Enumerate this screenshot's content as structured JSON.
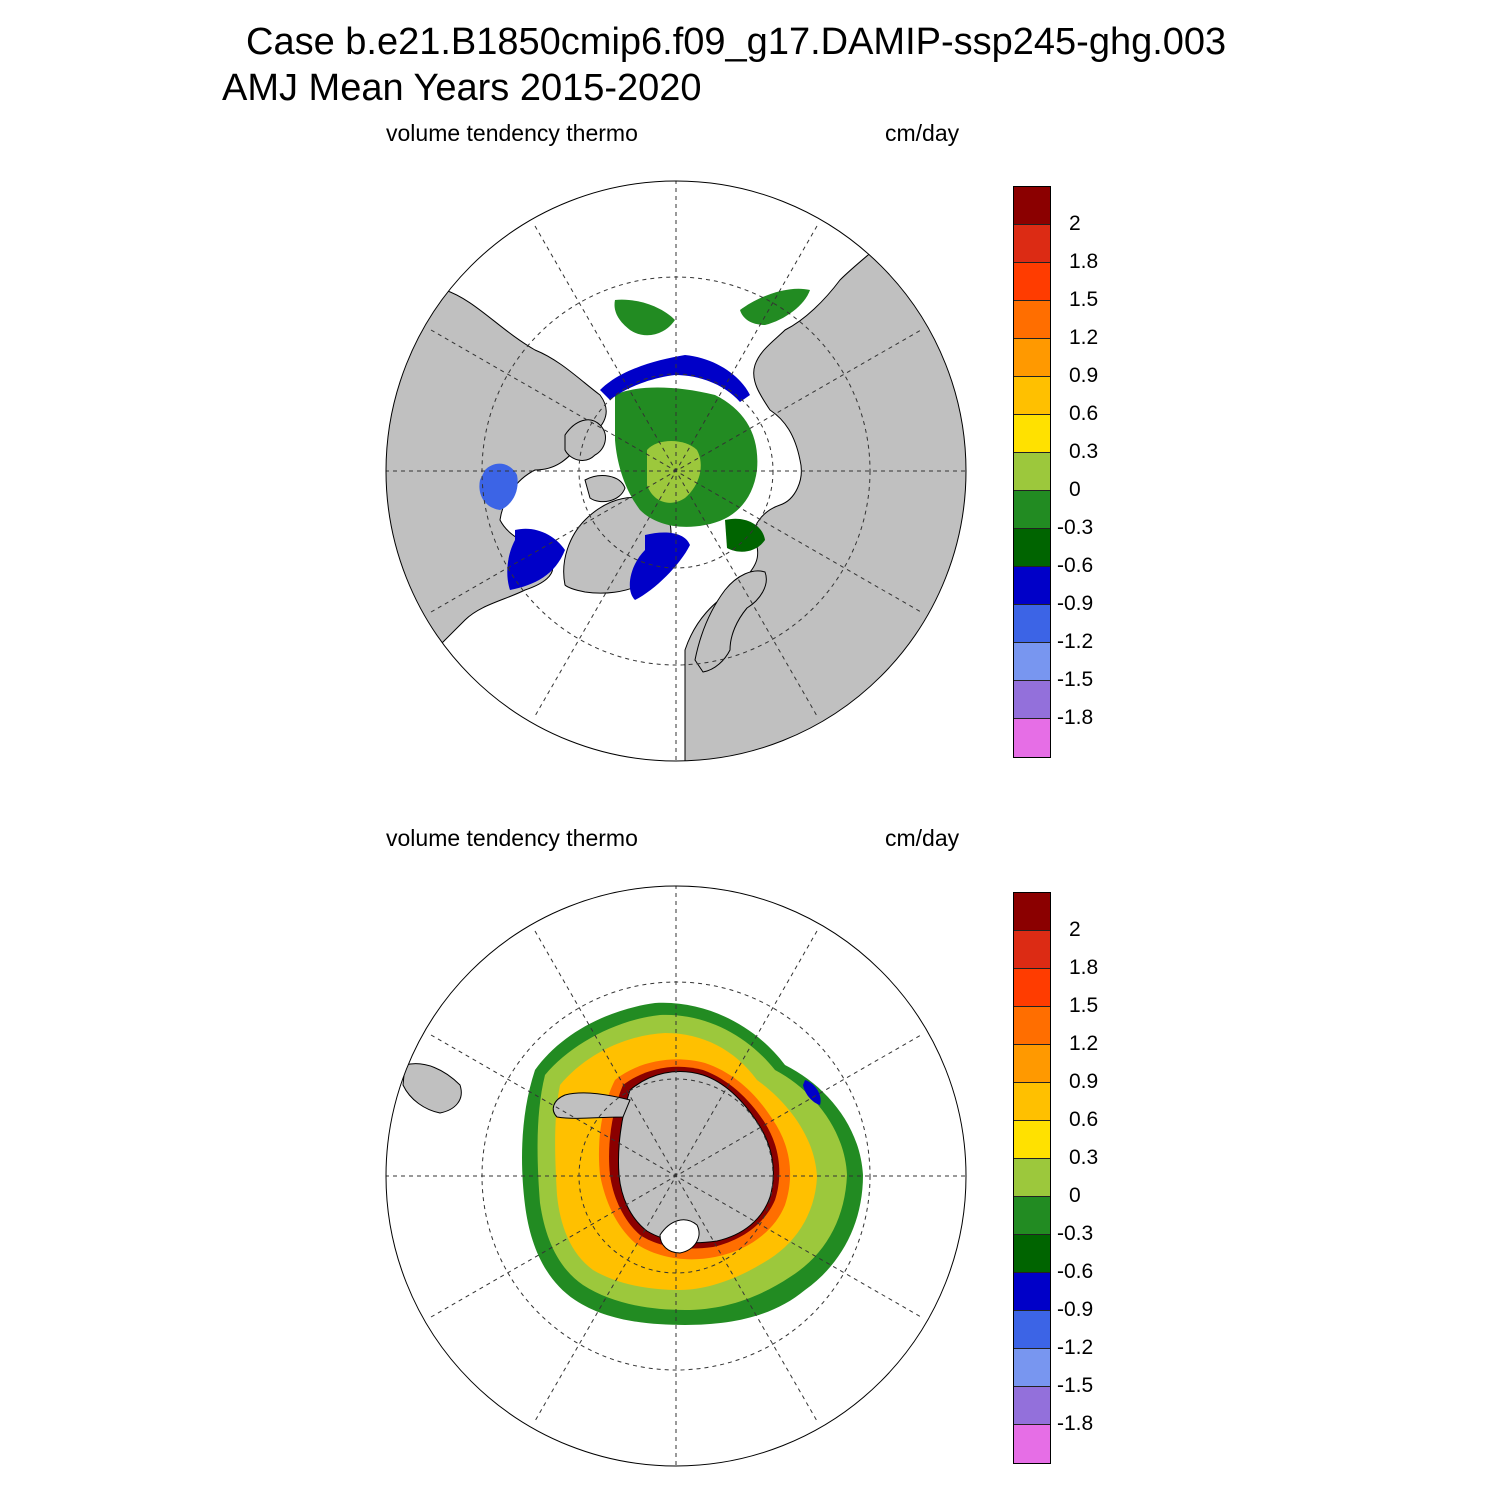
{
  "title": {
    "line1": "Case b.e21.B1850cmip6.f09_g17.DAMIP-ssp245-ghg.003",
    "line2": "AMJ Mean   Years 2015-2020"
  },
  "panels": [
    {
      "id": "north",
      "hemisphere": "Northern Hemisphere polar stereographic",
      "left_label": "volume tendency thermo",
      "right_label": "cm/day"
    },
    {
      "id": "south",
      "hemisphere": "Southern Hemisphere polar stereographic",
      "left_label": "volume tendency thermo",
      "right_label": "cm/day"
    }
  ],
  "colorbar": {
    "levels": [
      "2",
      "1.8",
      "1.5",
      "1.2",
      "0.9",
      "0.6",
      "0.3",
      "0",
      "-0.3",
      "-0.6",
      "-0.9",
      "-1.2",
      "-1.5",
      "-1.8"
    ],
    "colors": [
      "#8b0000",
      "#dc2b14",
      "#ff3c00",
      "#ff6e00",
      "#ff9900",
      "#ffc000",
      "#ffe100",
      "#9cc83c",
      "#228b22",
      "#006400",
      "#0000c8",
      "#3c64e6",
      "#7896f0",
      "#9370db",
      "#e66ee6"
    ]
  },
  "map_style": {
    "land_color": "#c0c0c0",
    "ocean_color": "#ffffff",
    "grid_line_style": "dashed"
  }
}
